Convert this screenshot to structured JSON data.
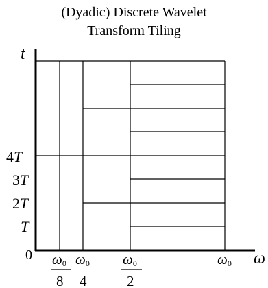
{
  "title": {
    "line1": "(Dyadic) Discrete Wavelet",
    "line2": "Transform Tiling"
  },
  "axes": {
    "y_symbol": "t",
    "x_symbol": "ω",
    "origin": "0"
  },
  "y_ticks": {
    "four_t_coef": "4",
    "four_t_var": "T",
    "three_t_coef": "3",
    "three_t_var": "T",
    "two_t_coef": "2",
    "two_t_var": "T",
    "one_t_var": "T"
  },
  "x_ticks": {
    "omega": "ω",
    "sub": "0",
    "den8": "8",
    "den4": "4",
    "den2": "2"
  }
}
